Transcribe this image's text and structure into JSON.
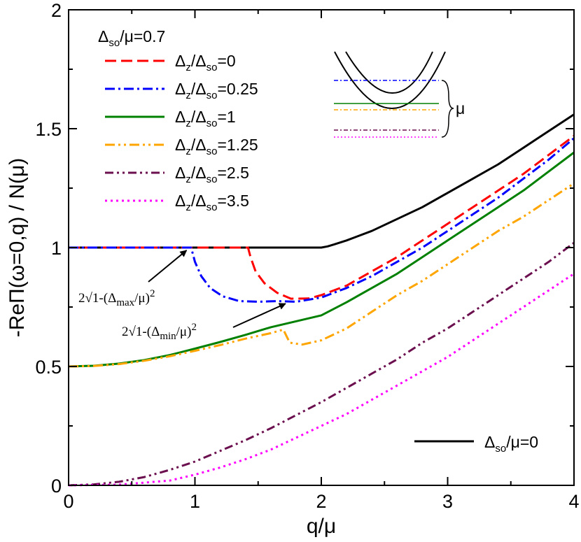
{
  "chart_data": {
    "type": "line",
    "title": "",
    "xlabel": "q/μ",
    "ylabel": "-ReΠ(ω=0,q) / N(μ)",
    "xlim": [
      0,
      4
    ],
    "ylim": [
      0,
      2
    ],
    "xticks": [
      0,
      1,
      2,
      3,
      4
    ],
    "xtick_labels": [
      "0",
      "1",
      "2",
      "3",
      "4"
    ],
    "yticks": [
      0,
      0.5,
      1,
      1.5,
      2
    ],
    "ytick_labels": [
      "0",
      "0.5",
      "1",
      "1.5",
      "2"
    ],
    "legend_header": {
      "prefix": "Δ",
      "sub": "so",
      "suffix": "/μ=0.7"
    },
    "series": [
      {
        "name": "Δso/μ=0",
        "legend": {
          "a": "Δ",
          "asub": "so",
          "rest": "/μ=0"
        },
        "color": "#000000",
        "dash": "solid",
        "points": [
          [
            0,
            1.0
          ],
          [
            2.0,
            1.0
          ],
          [
            2.05,
            1.005
          ],
          [
            2.1,
            1.013
          ],
          [
            2.2,
            1.03
          ],
          [
            2.4,
            1.07
          ],
          [
            2.6,
            1.12
          ],
          [
            2.8,
            1.17
          ],
          [
            3.0,
            1.23
          ],
          [
            3.2,
            1.29
          ],
          [
            3.4,
            1.35
          ],
          [
            3.6,
            1.42
          ],
          [
            3.8,
            1.49
          ],
          [
            4.0,
            1.56
          ]
        ]
      },
      {
        "name": "Δz/Δso=0",
        "legend": {
          "a": "Δ",
          "asub": "z",
          "mid": "/Δ",
          "bsub": "so",
          "rest": "=0"
        },
        "color": "#ff0000",
        "dash": "dashed",
        "points": [
          [
            0,
            1.0
          ],
          [
            1.42,
            1.0
          ],
          [
            1.44,
            0.96
          ],
          [
            1.48,
            0.9
          ],
          [
            1.55,
            0.85
          ],
          [
            1.65,
            0.81
          ],
          [
            1.76,
            0.785
          ],
          [
            1.9,
            0.786
          ],
          [
            2.0,
            0.8
          ],
          [
            2.2,
            0.84
          ],
          [
            2.4,
            0.9
          ],
          [
            2.6,
            0.96
          ],
          [
            2.8,
            1.03
          ],
          [
            3.0,
            1.1
          ],
          [
            3.2,
            1.17
          ],
          [
            3.4,
            1.24
          ],
          [
            3.6,
            1.31
          ],
          [
            3.8,
            1.39
          ],
          [
            4.0,
            1.47
          ]
        ]
      },
      {
        "name": "Δz/Δso=0.25",
        "legend": {
          "a": "Δ",
          "asub": "z",
          "mid": "/Δ",
          "bsub": "so",
          "rest": "=0.25"
        },
        "color": "#0000ff",
        "dash": "dashdot",
        "points": [
          [
            0,
            1.0
          ],
          [
            0.97,
            1.0
          ],
          [
            1.0,
            0.94
          ],
          [
            1.05,
            0.88
          ],
          [
            1.12,
            0.83
          ],
          [
            1.22,
            0.795
          ],
          [
            1.35,
            0.775
          ],
          [
            1.5,
            0.772
          ],
          [
            1.65,
            0.775
          ],
          [
            1.8,
            0.772
          ],
          [
            2.0,
            0.79
          ],
          [
            2.2,
            0.83
          ],
          [
            2.4,
            0.88
          ],
          [
            2.6,
            0.94
          ],
          [
            2.8,
            1.0
          ],
          [
            3.0,
            1.07
          ],
          [
            3.2,
            1.14
          ],
          [
            3.4,
            1.21
          ],
          [
            3.6,
            1.29
          ],
          [
            3.8,
            1.37
          ],
          [
            4.0,
            1.46
          ]
        ]
      },
      {
        "name": "Δz/Δso=1",
        "legend": {
          "a": "Δ",
          "asub": "z",
          "mid": "/Δ",
          "bsub": "so",
          "rest": "=1"
        },
        "color": "#008000",
        "dash": "solid",
        "points": [
          [
            0,
            0.5
          ],
          [
            0.2,
            0.503
          ],
          [
            0.4,
            0.512
          ],
          [
            0.6,
            0.527
          ],
          [
            0.8,
            0.548
          ],
          [
            1.0,
            0.575
          ],
          [
            1.2,
            0.603
          ],
          [
            1.4,
            0.633
          ],
          [
            1.6,
            0.665
          ],
          [
            1.8,
            0.69
          ],
          [
            2.0,
            0.715
          ],
          [
            2.2,
            0.77
          ],
          [
            2.4,
            0.83
          ],
          [
            2.6,
            0.89
          ],
          [
            2.8,
            0.96
          ],
          [
            3.0,
            1.03
          ],
          [
            3.2,
            1.1
          ],
          [
            3.4,
            1.17
          ],
          [
            3.6,
            1.24
          ],
          [
            3.8,
            1.32
          ],
          [
            4.0,
            1.4
          ]
        ]
      },
      {
        "name": "Δz/Δso=1.25",
        "legend": {
          "a": "Δ",
          "asub": "z",
          "mid": "/Δ",
          "bsub": "so",
          "rest": "=1.25"
        },
        "color": "#ffa500",
        "dash": "dashdotdot",
        "points": [
          [
            0,
            0.5
          ],
          [
            0.2,
            0.502
          ],
          [
            0.4,
            0.51
          ],
          [
            0.6,
            0.524
          ],
          [
            0.8,
            0.543
          ],
          [
            1.0,
            0.566
          ],
          [
            1.2,
            0.59
          ],
          [
            1.4,
            0.617
          ],
          [
            1.6,
            0.64
          ],
          [
            1.7,
            0.655
          ],
          [
            1.75,
            0.6
          ],
          [
            1.85,
            0.592
          ],
          [
            2.0,
            0.61
          ],
          [
            2.2,
            0.66
          ],
          [
            2.4,
            0.73
          ],
          [
            2.6,
            0.8
          ],
          [
            2.8,
            0.86
          ],
          [
            3.0,
            0.93
          ],
          [
            3.2,
            1.0
          ],
          [
            3.4,
            1.07
          ],
          [
            3.6,
            1.13
          ],
          [
            3.8,
            1.2
          ],
          [
            4.0,
            1.27
          ]
        ]
      },
      {
        "name": "Δz/Δso=2.5",
        "legend": {
          "a": "Δ",
          "asub": "z",
          "mid": "/Δ",
          "bsub": "so",
          "rest": "=2.5"
        },
        "color": "#6b0f4f",
        "dash": "dashdotdot2",
        "points": [
          [
            0,
            0.0
          ],
          [
            0.2,
            0.004
          ],
          [
            0.4,
            0.015
          ],
          [
            0.6,
            0.035
          ],
          [
            0.8,
            0.065
          ],
          [
            1.0,
            0.1
          ],
          [
            1.2,
            0.145
          ],
          [
            1.4,
            0.19
          ],
          [
            1.6,
            0.24
          ],
          [
            1.8,
            0.295
          ],
          [
            2.0,
            0.35
          ],
          [
            2.2,
            0.41
          ],
          [
            2.4,
            0.47
          ],
          [
            2.6,
            0.53
          ],
          [
            2.8,
            0.6
          ],
          [
            3.0,
            0.66
          ],
          [
            3.2,
            0.73
          ],
          [
            3.4,
            0.8
          ],
          [
            3.6,
            0.87
          ],
          [
            3.8,
            0.94
          ],
          [
            4.0,
            1.02
          ]
        ]
      },
      {
        "name": "Δz/Δso=3.5",
        "legend": {
          "a": "Δ",
          "asub": "z",
          "mid": "/Δ",
          "bsub": "so",
          "rest": "=3.5"
        },
        "color": "#ff00ff",
        "dash": "dotted",
        "points": [
          [
            0,
            0.0
          ],
          [
            0.4,
            0.003
          ],
          [
            0.8,
            0.02
          ],
          [
            1.0,
            0.045
          ],
          [
            1.2,
            0.075
          ],
          [
            1.4,
            0.11
          ],
          [
            1.6,
            0.15
          ],
          [
            1.8,
            0.2
          ],
          [
            2.0,
            0.25
          ],
          [
            2.2,
            0.3
          ],
          [
            2.4,
            0.36
          ],
          [
            2.6,
            0.42
          ],
          [
            2.8,
            0.48
          ],
          [
            3.0,
            0.54
          ],
          [
            3.2,
            0.61
          ],
          [
            3.4,
            0.68
          ],
          [
            3.6,
            0.75
          ],
          [
            3.8,
            0.82
          ],
          [
            4.0,
            0.89
          ]
        ]
      }
    ],
    "annotations": [
      {
        "id": "max",
        "pre": "2√1-(Δ",
        "sub": "max",
        "post": "/μ)",
        "sup": "2",
        "target": [
          0.95,
          1.0
        ]
      },
      {
        "id": "min",
        "pre": "2√1-(Δ",
        "sub": "min",
        "post": "/μ)",
        "sup": "2",
        "target": [
          1.75,
          0.77
        ]
      }
    ],
    "inset": {
      "label": "μ"
    }
  }
}
